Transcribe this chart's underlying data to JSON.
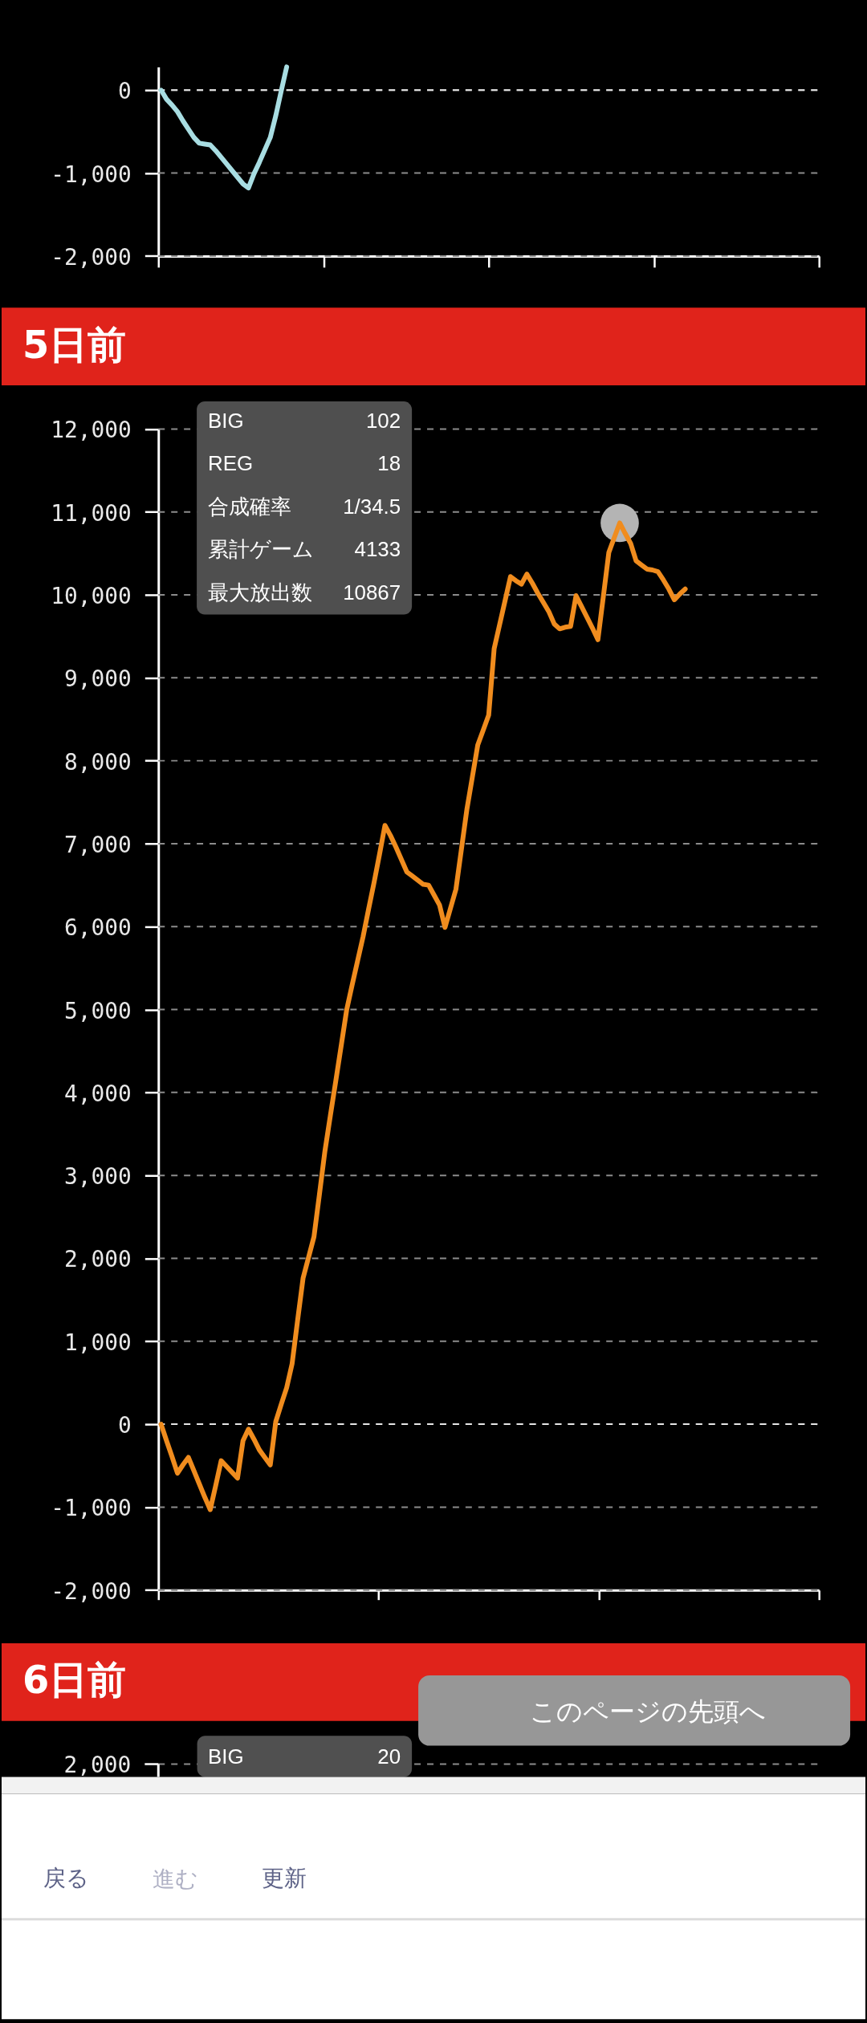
{
  "chart_data": [
    {
      "type": "line",
      "categories": [
        null,
        null,
        null,
        null,
        null,
        null,
        null,
        null,
        null,
        null,
        null,
        null,
        null,
        null,
        null,
        null,
        null,
        null,
        null,
        null,
        null,
        null,
        null,
        null,
        null,
        null,
        null,
        null,
        null,
        null,
        null,
        null,
        null,
        null,
        null,
        null,
        null,
        null,
        null,
        null,
        null,
        null,
        null,
        null,
        null,
        null,
        null,
        null,
        null,
        null,
        null,
        null,
        null,
        null,
        null,
        null,
        null,
        null,
        null,
        null,
        null,
        null,
        null,
        null,
        null,
        null,
        null,
        null,
        null,
        null,
        null,
        null,
        null,
        null,
        null,
        null,
        null,
        null,
        null,
        null,
        null,
        null,
        null,
        null,
        null,
        null,
        null,
        null,
        null,
        null,
        null,
        null,
        null,
        null,
        null,
        null,
        null,
        null,
        null,
        null,
        null,
        null,
        null,
        null,
        null,
        null,
        null,
        null,
        null,
        null,
        null,
        null,
        null,
        null,
        null,
        null,
        null,
        null,
        null,
        null,
        null
      ],
      "series": [
        {
          "color": "#a8dde2",
          "values": [
            0,
            -110,
            -180,
            -260,
            -370,
            -470,
            -570,
            -640,
            -650,
            -660,
            -730,
            -810,
            -890,
            -970,
            -1050,
            -1130,
            -1180,
            -1010,
            -870,
            -720,
            -570,
            -310,
            -10,
            280,
            null,
            null,
            null,
            null,
            null,
            null,
            null,
            null,
            null,
            null,
            null,
            null,
            null,
            null,
            null,
            null,
            null,
            null,
            null,
            null,
            null,
            null,
            null,
            null,
            null,
            null,
            null,
            null,
            null,
            null,
            null,
            null,
            null,
            null,
            null,
            null,
            null,
            null,
            null,
            null,
            null,
            null,
            null,
            null,
            null,
            null,
            null,
            null,
            null,
            null,
            null,
            null,
            null,
            null,
            null,
            null,
            null,
            null,
            null,
            null,
            null,
            null,
            null,
            null,
            null,
            null,
            null,
            null,
            null,
            null,
            null,
            null,
            null,
            null,
            null,
            null,
            null,
            null,
            null,
            null,
            null,
            null,
            null,
            null,
            null,
            null,
            null,
            null,
            null,
            null,
            null,
            null,
            null,
            null,
            null,
            null,
            null
          ]
        }
      ],
      "ylim": [
        -2000,
        280
      ],
      "yticks": [
        {
          "value": -2000,
          "label": "-2,000"
        },
        {
          "value": -1000,
          "label": "-1,000"
        },
        0
      ],
      "grid": "y",
      "tick_labels": "y",
      "ref_lines": [
        {
          "axis": "y",
          "value": 0,
          "color": "#e6e6e6",
          "line_style": "dashed"
        }
      ]
    },
    {
      "type": "line",
      "title": "5日前",
      "categories": [
        null,
        null,
        null,
        null,
        null,
        null,
        null,
        null,
        null,
        null,
        null,
        null,
        null,
        null,
        null,
        null,
        null,
        null,
        null,
        null,
        null,
        null,
        null,
        null,
        null,
        null,
        null,
        null,
        null,
        null,
        null,
        null,
        null,
        null,
        null,
        null,
        null,
        null,
        null,
        null,
        null,
        null,
        null,
        null,
        null,
        null,
        null,
        null,
        null,
        null,
        null,
        null,
        null,
        null,
        null,
        null,
        null,
        null,
        null,
        null,
        null,
        null,
        null,
        null,
        null,
        null,
        null,
        null,
        null,
        null,
        null,
        null,
        null,
        null,
        null,
        null,
        null,
        null,
        null,
        null,
        null,
        null,
        null,
        null,
        null,
        null,
        null,
        null,
        null,
        null,
        null,
        null,
        null,
        null,
        null,
        null,
        null,
        null,
        null,
        null,
        null,
        null,
        null,
        null,
        null,
        null,
        null,
        null,
        null,
        null,
        null,
        null,
        null,
        null,
        null,
        null,
        null,
        null,
        null,
        null,
        null
      ],
      "series": [
        {
          "color": "#f08c1e",
          "values": [
            0,
            -200,
            -390,
            -590,
            -490,
            -400,
            -560,
            -720,
            -880,
            -1030,
            -740,
            -440,
            -510,
            -580,
            -650,
            -200,
            -60,
            -180,
            -310,
            -400,
            -490,
            30,
            240,
            440,
            730,
            1250,
            1760,
            2010,
            2260,
            2770,
            3290,
            3720,
            4140,
            4570,
            5000,
            5300,
            5590,
            5880,
            6210,
            6530,
            6870,
            7220,
            7100,
            6960,
            6810,
            6660,
            6610,
            6560,
            6510,
            6500,
            6380,
            6260,
            5990,
            6220,
            6450,
            6930,
            7410,
            7800,
            8190,
            8370,
            8550,
            9350,
            9640,
            9930,
            10220,
            10170,
            10130,
            10250,
            10140,
            10020,
            9910,
            9800,
            9650,
            9590,
            9610,
            9620,
            9990,
            9860,
            9730,
            9600,
            9460,
            9980,
            10510,
            10690,
            10867,
            10740,
            10620,
            10410,
            10360,
            10310,
            10300,
            10280,
            10180,
            10070,
            9940,
            10010,
            10070,
            null,
            null,
            null,
            null,
            null,
            null,
            null,
            null,
            null,
            null,
            null,
            null,
            null,
            null,
            null,
            null,
            null,
            null,
            null,
            null,
            null,
            null,
            null,
            null
          ]
        },
        {
          "type": "scatter",
          "marker": "circle",
          "color": "#b4b4b4",
          "values": [
            null,
            null,
            null,
            null,
            null,
            null,
            null,
            null,
            null,
            null,
            null,
            null,
            null,
            null,
            null,
            null,
            null,
            null,
            null,
            null,
            null,
            null,
            null,
            null,
            null,
            null,
            null,
            null,
            null,
            null,
            null,
            null,
            null,
            null,
            null,
            null,
            null,
            null,
            null,
            null,
            null,
            null,
            null,
            null,
            null,
            null,
            null,
            null,
            null,
            null,
            null,
            null,
            null,
            null,
            null,
            null,
            null,
            null,
            null,
            null,
            null,
            null,
            null,
            null,
            null,
            null,
            null,
            null,
            null,
            null,
            null,
            null,
            null,
            null,
            null,
            null,
            null,
            null,
            null,
            null,
            null,
            null,
            null,
            null,
            10867,
            null,
            null,
            null,
            null,
            null,
            null,
            null,
            null,
            null,
            null,
            null,
            null,
            null,
            null,
            null,
            null,
            null,
            null,
            null,
            null,
            null,
            null,
            null,
            null,
            null,
            null,
            null,
            null,
            null,
            null,
            null,
            null,
            null,
            null,
            null,
            null
          ]
        }
      ],
      "ylim": [
        -2000,
        12000
      ],
      "yticks": [
        {
          "value": -2000,
          "label": "-2,000"
        },
        {
          "value": -1000,
          "label": "-1,000"
        },
        0,
        {
          "value": 1000,
          "label": "1,000"
        },
        {
          "value": 2000,
          "label": "2,000"
        },
        {
          "value": 3000,
          "label": "3,000"
        },
        {
          "value": 4000,
          "label": "4,000"
        },
        {
          "value": 5000,
          "label": "5,000"
        },
        {
          "value": 6000,
          "label": "6,000"
        },
        {
          "value": 7000,
          "label": "7,000"
        },
        {
          "value": 8000,
          "label": "8,000"
        },
        {
          "value": 9000,
          "label": "9,000"
        },
        {
          "value": 10000,
          "label": "10,000"
        },
        {
          "value": 11000,
          "label": "11,000"
        },
        {
          "value": 12000,
          "label": "12,000"
        }
      ],
      "grid": "y",
      "tick_labels": "y",
      "ref_lines": [
        {
          "axis": "y",
          "value": 0,
          "color": "#e6e6e6",
          "line_style": "dashed"
        }
      ],
      "annotations": [
        "BIG",
        "102",
        "REG",
        "18",
        "合成確率",
        "1/34.5",
        "累計ゲーム",
        "4133",
        "最大放出数",
        "10867"
      ]
    },
    {
      "type": "other",
      "title": "6日前",
      "annotations": [
        "2,000",
        "BIG",
        "20",
        "このページの先頭へ",
        "戻る",
        "進む",
        "更新"
      ]
    }
  ]
}
